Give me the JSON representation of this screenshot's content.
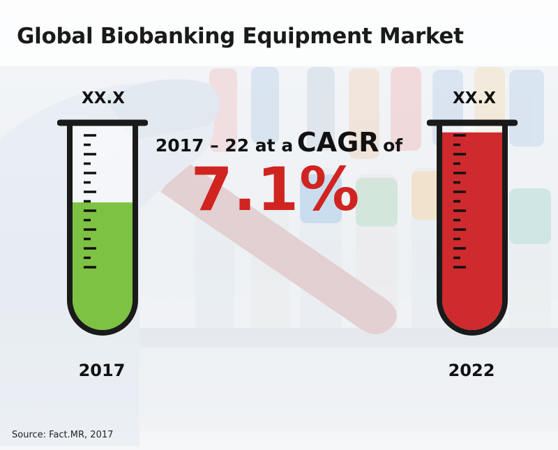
{
  "title": "Global Biobanking Equipment Market",
  "cagr": {
    "prefix": "2017 – 22 at a",
    "cagr_word": "CAGR",
    "suffix": "of",
    "value": "7.1%"
  },
  "source": "Source: Fact.MR, 2017",
  "colors": {
    "tube_2017_fill": "#7dc243",
    "tube_2022_fill": "#cf2a2d",
    "cagr_value": "#d02420",
    "tube_outline": "#1a1a1a"
  },
  "chart_data": {
    "type": "bar",
    "categories": [
      "2017",
      "2022"
    ],
    "value_labels": [
      "XX.X",
      "XX.X"
    ],
    "series": [
      {
        "fill_fractions": [
          0.62,
          0.96
        ]
      }
    ],
    "annotation": "2017 – 22 at a CAGR of 7.1%"
  }
}
